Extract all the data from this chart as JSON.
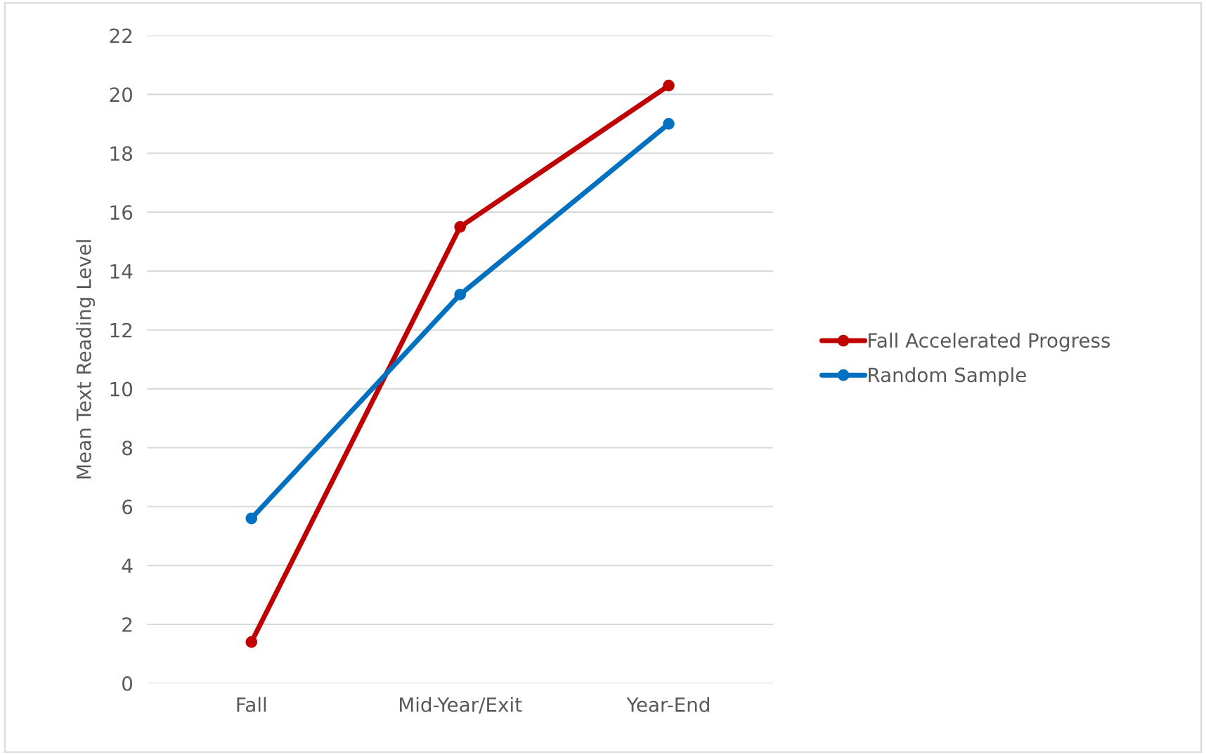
{
  "chart_data": {
    "type": "line",
    "ylabel": "Mean Text Reading Level",
    "categories": [
      "Fall",
      "Mid-Year/Exit",
      "Year-End"
    ],
    "series": [
      {
        "name": "Fall Accelerated Progress",
        "color": "#c00000",
        "values": [
          1.4,
          15.5,
          20.3
        ]
      },
      {
        "name": "Random Sample",
        "color": "#0070c0",
        "values": [
          5.6,
          13.2,
          19.0
        ]
      }
    ],
    "ylim": [
      0,
      22
    ],
    "yticks": [
      0,
      2,
      4,
      6,
      8,
      10,
      12,
      14,
      16,
      18,
      20,
      22
    ],
    "grid": "y",
    "legend": "right",
    "marker": "circle",
    "line_style": "solid"
  }
}
